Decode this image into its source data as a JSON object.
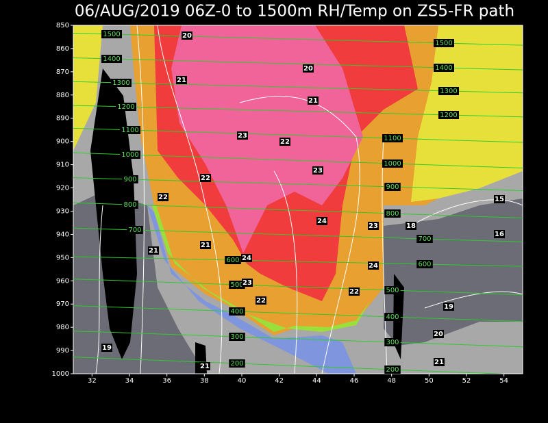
{
  "chart_data": {
    "type": "contour",
    "title": "06/AUG/2019 06Z-0 to 1500m RH/Temp on ZS5-FR path",
    "xlim": [
      31,
      55
    ],
    "xticks": [
      32,
      34,
      36,
      38,
      40,
      42,
      44,
      46,
      48,
      50,
      52,
      54
    ],
    "ylim": [
      850,
      1000
    ],
    "yticks": [
      850,
      860,
      870,
      880,
      890,
      900,
      910,
      920,
      930,
      940,
      950,
      960,
      970,
      980,
      990,
      1000
    ],
    "inverted_y": true,
    "height_contours": {
      "color": "#2ecc2e",
      "levels": [
        1500,
        1400,
        1300,
        1200,
        1100,
        1000,
        900,
        800,
        700,
        600,
        500,
        400,
        300,
        200
      ]
    },
    "temperature_labels": [
      20,
      20,
      21,
      21,
      23,
      22,
      23,
      22,
      22,
      15,
      24,
      23,
      18,
      16,
      21,
      21,
      24,
      24,
      23,
      22,
      22,
      19,
      20,
      19,
      21,
      21
    ]
  }
}
